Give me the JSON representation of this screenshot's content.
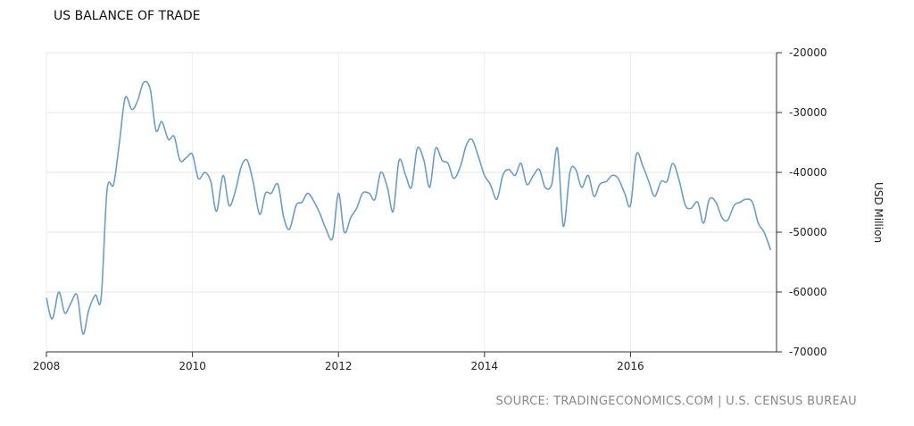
{
  "chart_data": {
    "type": "line",
    "title": "US BALANCE OF TRADE",
    "ylabel": "USD Million",
    "source": "SOURCE: TRADINGECONOMICS.COM | U.S. CENSUS BUREAU",
    "ylim": [
      -70000,
      -20000
    ],
    "xlim": [
      2008,
      2018
    ],
    "yticks": [
      -20000,
      -30000,
      -40000,
      -50000,
      -60000,
      -70000
    ],
    "ytick_labels": [
      "-20000",
      "-30000",
      "-40000",
      "-50000",
      "-60000",
      "-70000"
    ],
    "xticks": [
      2008,
      2010,
      2012,
      2014,
      2016
    ],
    "xtick_labels": [
      "2008",
      "2010",
      "2012",
      "2014",
      "2016"
    ],
    "grid": true,
    "color": "#6a9ec8",
    "series": [
      {
        "x": [
          2008.0,
          2008.08,
          2008.17,
          2008.25,
          2008.33,
          2008.42,
          2008.5,
          2008.58,
          2008.67,
          2008.75,
          2008.83,
          2008.92,
          2009.0,
          2009.08,
          2009.17,
          2009.25,
          2009.33,
          2009.42,
          2009.5,
          2009.58,
          2009.67,
          2009.75,
          2009.83,
          2009.92,
          2010.0,
          2010.08,
          2010.17,
          2010.25,
          2010.33,
          2010.42,
          2010.5,
          2010.58,
          2010.67,
          2010.75,
          2010.83,
          2010.92,
          2011.0,
          2011.08,
          2011.17,
          2011.25,
          2011.33,
          2011.42,
          2011.5,
          2011.58,
          2011.67,
          2011.75,
          2011.83,
          2011.92,
          2012.0,
          2012.08,
          2012.17,
          2012.25,
          2012.33,
          2012.42,
          2012.5,
          2012.58,
          2012.67,
          2012.75,
          2012.83,
          2012.92,
          2013.0,
          2013.08,
          2013.17,
          2013.25,
          2013.33,
          2013.42,
          2013.5,
          2013.58,
          2013.67,
          2013.75,
          2013.83,
          2013.92,
          2014.0,
          2014.08,
          2014.17,
          2014.25,
          2014.33,
          2014.42,
          2014.5,
          2014.58,
          2014.67,
          2014.75,
          2014.83,
          2014.92,
          2015.0,
          2015.08,
          2015.17,
          2015.25,
          2015.33,
          2015.42,
          2015.5,
          2015.58,
          2015.67,
          2015.75,
          2015.83,
          2015.92,
          2016.0,
          2016.08,
          2016.17,
          2016.25,
          2016.33,
          2016.42,
          2016.5,
          2016.58,
          2016.67,
          2016.75,
          2016.83,
          2016.92,
          2017.0,
          2017.08,
          2017.17,
          2017.25,
          2017.33,
          2017.42,
          2017.5,
          2017.58,
          2017.67,
          2017.75,
          2017.83,
          2017.92
        ],
        "y": [
          -61000,
          -64500,
          -60000,
          -63500,
          -62000,
          -60500,
          -67000,
          -63000,
          -60500,
          -61000,
          -43000,
          -42000,
          -35000,
          -27500,
          -29500,
          -28000,
          -25000,
          -26000,
          -33000,
          -31500,
          -34500,
          -34000,
          -38000,
          -37500,
          -37000,
          -41000,
          -40000,
          -41500,
          -46500,
          -40500,
          -45500,
          -43500,
          -39000,
          -38000,
          -41500,
          -47000,
          -43500,
          -43500,
          -42000,
          -47500,
          -49500,
          -45500,
          -45000,
          -43500,
          -45000,
          -47000,
          -49500,
          -51000,
          -43500,
          -50000,
          -47500,
          -46000,
          -43500,
          -43500,
          -44500,
          -40000,
          -42500,
          -46500,
          -38000,
          -40500,
          -42500,
          -36000,
          -38000,
          -42500,
          -36000,
          -38000,
          -38500,
          -41000,
          -39000,
          -35500,
          -34500,
          -37500,
          -40500,
          -42000,
          -44500,
          -40500,
          -39500,
          -40500,
          -38500,
          -42000,
          -40500,
          -39500,
          -42500,
          -42000,
          -36000,
          -49000,
          -40000,
          -39500,
          -42500,
          -40500,
          -44000,
          -42000,
          -41500,
          -40500,
          -41000,
          -43500,
          -45500,
          -37000,
          -39000,
          -41500,
          -44000,
          -41500,
          -41500,
          -38500,
          -41500,
          -45500,
          -46000,
          -45000,
          -48500,
          -44500,
          -45000,
          -47500,
          -48000,
          -45500,
          -45000,
          -44500,
          -45000,
          -48500,
          -50000,
          -53000
        ]
      }
    ]
  }
}
